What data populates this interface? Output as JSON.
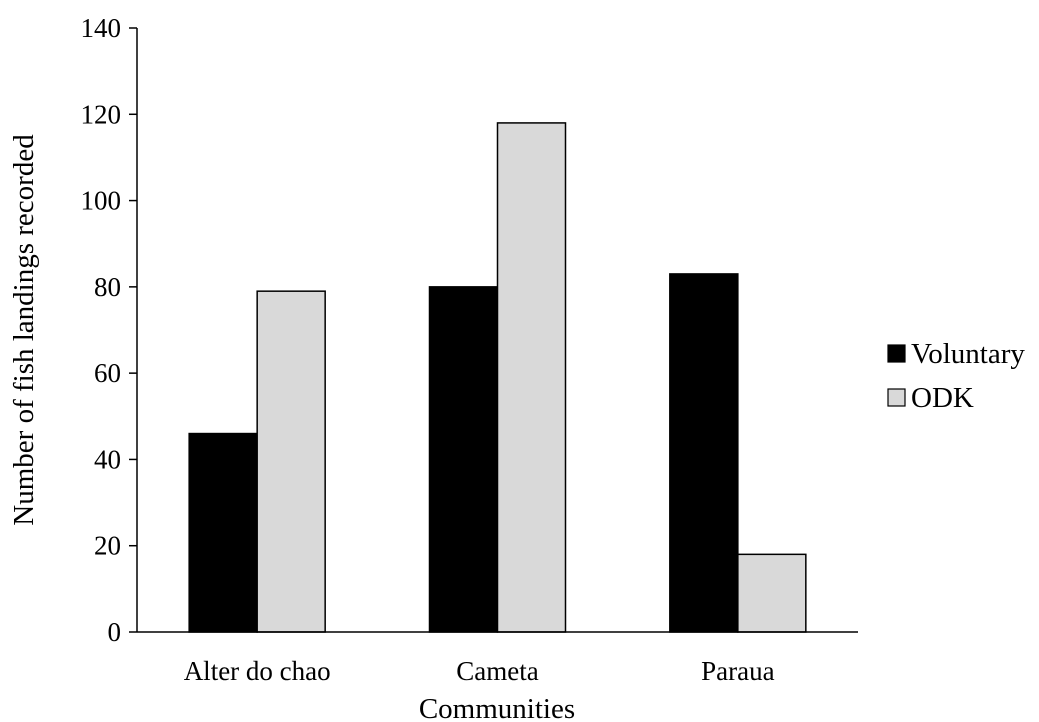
{
  "chart_data": {
    "type": "bar",
    "title": "",
    "xlabel": "Communities",
    "ylabel": "Number of fish landings recorded",
    "categories": [
      "Alter do chao",
      "Cameta",
      "Paraua"
    ],
    "series": [
      {
        "name": "Voluntary",
        "values": [
          46,
          80,
          83
        ],
        "color": "#000000"
      },
      {
        "name": "ODK",
        "values": [
          79,
          118,
          18
        ],
        "color": "#d9d9d9"
      }
    ],
    "ylim": [
      0,
      140
    ],
    "yticks": [
      0,
      20,
      40,
      60,
      80,
      100,
      120,
      140
    ],
    "grid": false,
    "legend_position": "right"
  }
}
